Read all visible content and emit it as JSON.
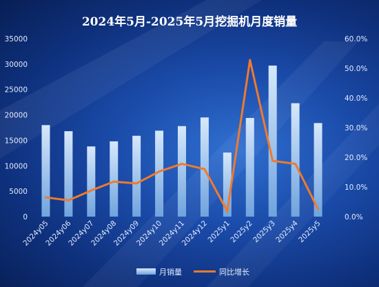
{
  "chart_data": {
    "type": "bar",
    "title": "2024年5月-2025年5月挖掘机月度销量",
    "categories": [
      "2024y05",
      "2024y06",
      "2024y07",
      "2024y08",
      "2024y09",
      "2024y10",
      "2024y11",
      "2024y12",
      "2025y1",
      "2025y2",
      "2025y3",
      "2025y4",
      "2025y5"
    ],
    "series": [
      {
        "name": "月销量",
        "type": "bar",
        "axis": "left",
        "color": "#9fc6ee",
        "values": [
          18000,
          16800,
          13800,
          14800,
          15900,
          16900,
          17800,
          19500,
          12600,
          19400,
          29700,
          22300,
          18400
        ]
      },
      {
        "name": "同比增长",
        "type": "line",
        "axis": "right",
        "color": "#f07a2c",
        "values": [
          6.5,
          5.5,
          8.8,
          11.8,
          11.2,
          15.2,
          17.8,
          16.0,
          1.8,
          52.8,
          18.8,
          17.8,
          2.5
        ]
      }
    ],
    "y_left": {
      "min": 0,
      "max": 35000,
      "ticks": [
        "0",
        "5000",
        "10000",
        "15000",
        "20000",
        "25000",
        "30000",
        "35000"
      ]
    },
    "y_right": {
      "min": 0,
      "max": 60,
      "ticks": [
        "0.0%",
        "10.0%",
        "20.0%",
        "30.0%",
        "40.0%",
        "50.0%",
        "60.0%"
      ]
    },
    "legend": {
      "position": "bottom",
      "items": [
        "月销量",
        "同比增长"
      ]
    },
    "grid": false
  }
}
